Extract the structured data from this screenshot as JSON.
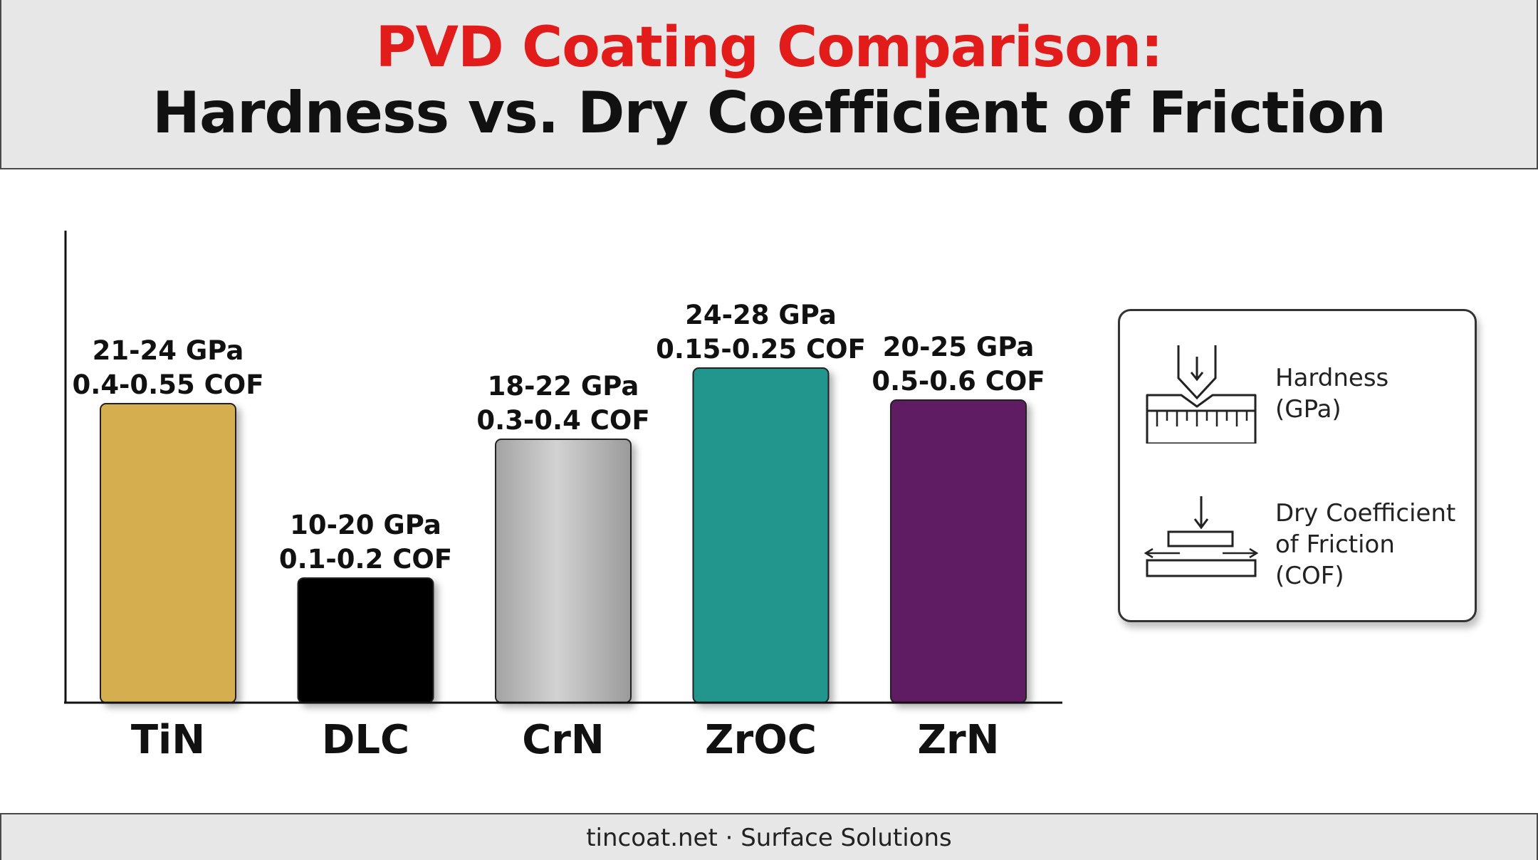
{
  "header": {
    "title_line1": "PVD Coating Comparison:",
    "title_line2": "Hardness vs. Dry Coefficient of Friction"
  },
  "chart_data": {
    "type": "bar",
    "title": "PVD Coating Comparison: Hardness vs. Dry Coefficient of Friction",
    "categories": [
      "TiN",
      "DLC",
      "CrN",
      "ZrOC",
      "ZrN"
    ],
    "hardness_gpa": [
      [
        21,
        24
      ],
      [
        10,
        20
      ],
      [
        18,
        22
      ],
      [
        24,
        28
      ],
      [
        20,
        25
      ]
    ],
    "cof": [
      [
        0.4,
        0.55
      ],
      [
        0.1,
        0.2
      ],
      [
        0.3,
        0.4
      ],
      [
        0.15,
        0.25
      ],
      [
        0.5,
        0.6
      ]
    ],
    "bar_height_relative": [
      0.84,
      0.35,
      0.74,
      0.94,
      0.85
    ],
    "hardness_labels": [
      "21-24 GPa",
      "10-20 GPa",
      "18-22 GPa",
      "24-28 GPa",
      "20-25 GPa"
    ],
    "cof_labels": [
      "0.4-0.55 COF",
      "0.1-0.2 COF",
      "0.3-0.4 COF",
      "0.15-0.25 COF",
      "0.5-0.6 COF"
    ],
    "colors": [
      "#d4ae4f",
      "#050505",
      "#b0b0b0",
      "#20968c",
      "#5e1d62"
    ],
    "grid": false,
    "legend_placement": "right"
  },
  "legend": {
    "hardness_label": "Hardness\n(GPa)",
    "hardness_icon": "indenter-icon",
    "cof_label": "Dry Coefficient\nof Friction\n(COF)",
    "cof_icon": "friction-block-icon"
  },
  "footer": {
    "text": "tincoat.net · Surface Solutions"
  }
}
